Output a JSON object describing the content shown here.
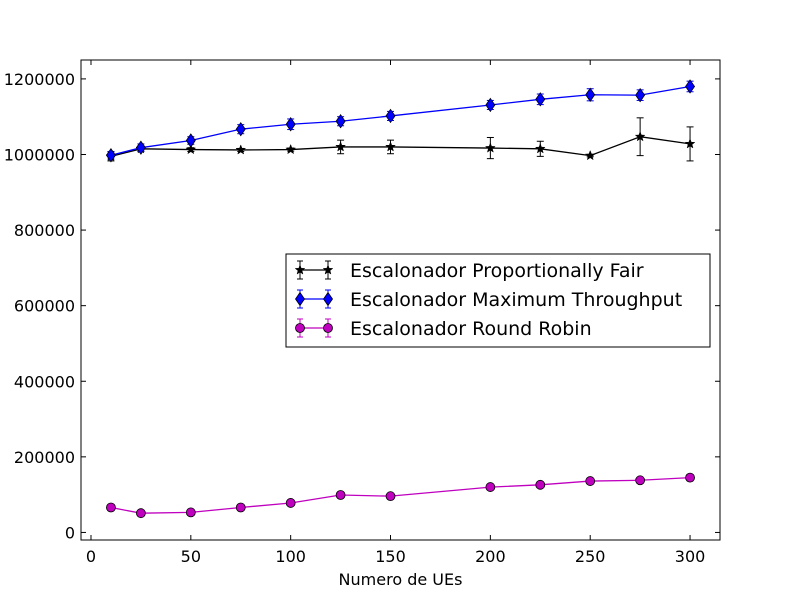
{
  "chart_data": {
    "type": "line",
    "title": "",
    "xlabel": "Numero de UEs",
    "ylabel": "",
    "xlim": [
      -5,
      315
    ],
    "ylim": [
      -20000,
      1250000
    ],
    "x_ticks": [
      0,
      50,
      100,
      150,
      200,
      250,
      300
    ],
    "y_ticks": [
      0,
      200000,
      400000,
      600000,
      800000,
      1000000,
      1200000
    ],
    "grid": false,
    "legend_position": "center-right",
    "series": [
      {
        "name": "Escalonador Proportionally Fair",
        "color": "#000000",
        "marker": "star",
        "x": [
          10,
          25,
          50,
          75,
          100,
          125,
          150,
          200,
          225,
          250,
          275,
          300
        ],
        "y": [
          995000,
          1015000,
          1013000,
          1012000,
          1013000,
          1020000,
          1020000,
          1017000,
          1015000,
          997000,
          1047000,
          1028000
        ],
        "err": [
          12000,
          6000,
          5000,
          4000,
          4000,
          18000,
          18000,
          28000,
          20000,
          3000,
          50000,
          45000
        ]
      },
      {
        "name": "Escalonador Maximum Throughput",
        "color": "#0000ff",
        "marker": "diamond",
        "x": [
          10,
          25,
          50,
          75,
          100,
          125,
          150,
          200,
          225,
          250,
          275,
          300
        ],
        "y": [
          998000,
          1018000,
          1037000,
          1067000,
          1080000,
          1088000,
          1102000,
          1131000,
          1146000,
          1158000,
          1157000,
          1180000
        ],
        "err": [
          10000,
          10000,
          10000,
          12000,
          14000,
          12000,
          12000,
          12000,
          14000,
          16000,
          14000,
          14000
        ]
      },
      {
        "name": "Escalonador Round Robin",
        "color": "#bf00bf",
        "marker": "circle",
        "x": [
          10,
          25,
          50,
          75,
          100,
          125,
          150,
          200,
          225,
          250,
          275,
          300
        ],
        "y": [
          66000,
          51000,
          53000,
          66000,
          78000,
          99000,
          96000,
          120000,
          126000,
          136000,
          138000,
          145000
        ],
        "err": [
          3000,
          3000,
          3000,
          3000,
          3000,
          3000,
          3000,
          3000,
          3000,
          3000,
          3000,
          3000
        ]
      }
    ]
  }
}
